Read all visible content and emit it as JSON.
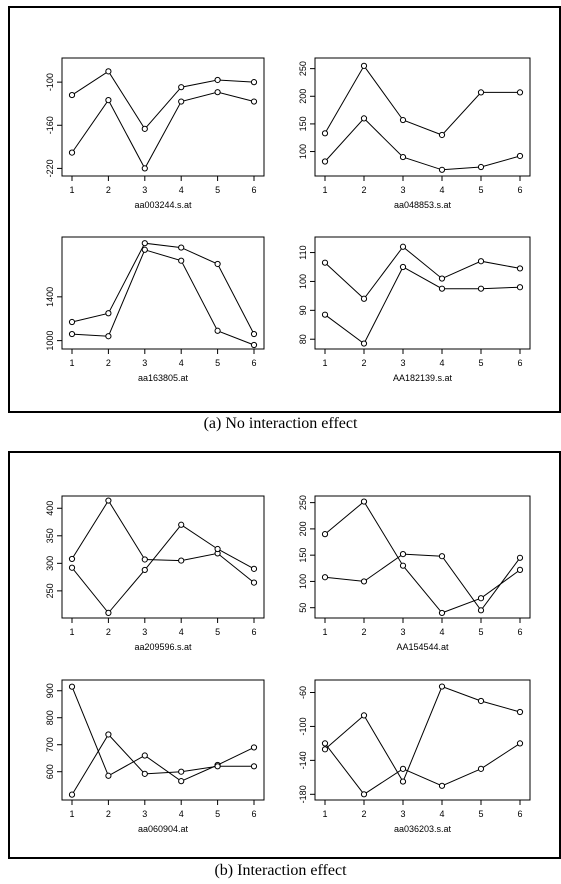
{
  "captions": {
    "a": "(a) No interaction effect",
    "b": "(b) Interaction effect"
  },
  "chart_data": [
    {
      "type": "line",
      "xlabel": "aa003244.s.at",
      "x": [
        1,
        2,
        3,
        4,
        5,
        6
      ],
      "yticks": [
        -100,
        -160,
        -220
      ],
      "ylim": [
        -225,
        -72
      ],
      "series": [
        {
          "values": [
            -118,
            -85,
            -165,
            -107,
            -97,
            -100
          ]
        },
        {
          "values": [
            -198,
            -125,
            -220,
            -127,
            -114,
            -127
          ]
        }
      ]
    },
    {
      "type": "line",
      "xlabel": "aa048853.s.at",
      "x": [
        1,
        2,
        3,
        4,
        5,
        6
      ],
      "yticks": [
        100,
        150,
        200,
        250
      ],
      "ylim": [
        63,
        262
      ],
      "series": [
        {
          "values": [
            133,
            255,
            157,
            130,
            207,
            207
          ]
        },
        {
          "values": [
            82,
            160,
            90,
            67,
            72,
            92
          ]
        }
      ]
    },
    {
      "type": "line",
      "xlabel": "aa163805.at",
      "x": [
        1,
        2,
        3,
        4,
        5,
        6
      ],
      "yticks": [
        1000,
        1400
      ],
      "ylim": [
        960,
        1910
      ],
      "series": [
        {
          "values": [
            1170,
            1250,
            1890,
            1850,
            1700,
            1060
          ]
        },
        {
          "values": [
            1060,
            1040,
            1830,
            1730,
            1090,
            960
          ]
        }
      ]
    },
    {
      "type": "line",
      "xlabel": "AA182139.s.at",
      "x": [
        1,
        2,
        3,
        4,
        5,
        6
      ],
      "yticks": [
        80,
        90,
        100,
        110
      ],
      "ylim": [
        78,
        114
      ],
      "series": [
        {
          "values": [
            106.5,
            94,
            112,
            101,
            107,
            104.5
          ]
        },
        {
          "values": [
            88.5,
            78.5,
            105,
            97.5,
            97.5,
            98
          ]
        }
      ]
    },
    {
      "type": "line",
      "xlabel": "aa209596.s.at",
      "x": [
        1,
        2,
        3,
        4,
        5,
        6
      ],
      "yticks": [
        250,
        300,
        350,
        400
      ],
      "ylim": [
        208,
        415
      ],
      "series": [
        {
          "values": [
            308,
            414,
            307,
            305,
            318,
            265
          ]
        },
        {
          "values": [
            292,
            210,
            288,
            370,
            326,
            290
          ]
        }
      ]
    },
    {
      "type": "line",
      "xlabel": "AA154544.at",
      "x": [
        1,
        2,
        3,
        4,
        5,
        6
      ],
      "yticks": [
        50,
        100,
        150,
        200,
        250
      ],
      "ylim": [
        38,
        255
      ],
      "series": [
        {
          "values": [
            190,
            252,
            130,
            40,
            68,
            122
          ]
        },
        {
          "values": [
            108,
            100,
            152,
            148,
            45,
            145
          ]
        }
      ]
    },
    {
      "type": "line",
      "xlabel": "aa060904.at",
      "x": [
        1,
        2,
        3,
        4,
        5,
        6
      ],
      "yticks": [
        600,
        700,
        800,
        900
      ],
      "ylim": [
        510,
        925
      ],
      "series": [
        {
          "values": [
            915,
            585,
            660,
            565,
            625,
            690
          ]
        },
        {
          "values": [
            515,
            738,
            592,
            600,
            620,
            620
          ]
        }
      ]
    },
    {
      "type": "line",
      "xlabel": "aa036203.s.at",
      "x": [
        1,
        2,
        3,
        4,
        5,
        6
      ],
      "yticks": [
        -60,
        -100,
        -140,
        -180
      ],
      "ylim": [
        -182,
        -50
      ],
      "series": [
        {
          "values": [
            -127,
            -87,
            -165,
            -53,
            -70,
            -83
          ]
        },
        {
          "values": [
            -120,
            -180,
            -150,
            -170,
            -150,
            -120
          ]
        }
      ]
    }
  ]
}
